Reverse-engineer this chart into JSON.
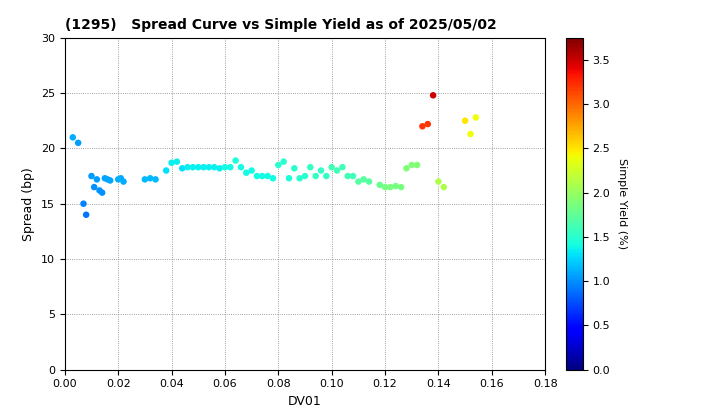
{
  "title": "(1295)   Spread Curve vs Simple Yield as of 2025/05/02",
  "xlabel": "DV01",
  "ylabel": "Spread (bp)",
  "colorbar_label": "Simple Yield (%)",
  "xlim": [
    0.0,
    0.18
  ],
  "ylim": [
    0,
    30
  ],
  "xticks": [
    0.0,
    0.02,
    0.04,
    0.06,
    0.08,
    0.1,
    0.12,
    0.14,
    0.16,
    0.18
  ],
  "yticks": [
    0,
    5,
    10,
    15,
    20,
    25,
    30
  ],
  "colorbar_min": 0.0,
  "colorbar_max": 3.75,
  "colorbar_ticks": [
    0.0,
    0.5,
    1.0,
    1.5,
    2.0,
    2.5,
    3.0,
    3.5
  ],
  "points": [
    [
      0.003,
      21.0,
      1.1
    ],
    [
      0.005,
      20.5,
      1.05
    ],
    [
      0.007,
      15.0,
      0.95
    ],
    [
      0.008,
      14.0,
      0.9
    ],
    [
      0.01,
      17.5,
      1.05
    ],
    [
      0.011,
      16.5,
      1.0
    ],
    [
      0.012,
      17.2,
      1.05
    ],
    [
      0.013,
      16.2,
      1.0
    ],
    [
      0.014,
      16.0,
      1.0
    ],
    [
      0.015,
      17.3,
      1.08
    ],
    [
      0.016,
      17.2,
      1.08
    ],
    [
      0.017,
      17.1,
      1.07
    ],
    [
      0.02,
      17.2,
      1.1
    ],
    [
      0.021,
      17.3,
      1.1
    ],
    [
      0.022,
      17.0,
      1.1
    ],
    [
      0.03,
      17.2,
      1.15
    ],
    [
      0.032,
      17.3,
      1.15
    ],
    [
      0.034,
      17.2,
      1.15
    ],
    [
      0.038,
      18.0,
      1.3
    ],
    [
      0.04,
      18.7,
      1.35
    ],
    [
      0.042,
      18.8,
      1.35
    ],
    [
      0.044,
      18.2,
      1.3
    ],
    [
      0.046,
      18.3,
      1.35
    ],
    [
      0.048,
      18.3,
      1.35
    ],
    [
      0.05,
      18.3,
      1.35
    ],
    [
      0.052,
      18.3,
      1.35
    ],
    [
      0.054,
      18.3,
      1.35
    ],
    [
      0.056,
      18.3,
      1.35
    ],
    [
      0.058,
      18.2,
      1.35
    ],
    [
      0.06,
      18.3,
      1.4
    ],
    [
      0.062,
      18.3,
      1.4
    ],
    [
      0.064,
      18.9,
      1.45
    ],
    [
      0.066,
      18.3,
      1.4
    ],
    [
      0.068,
      17.8,
      1.4
    ],
    [
      0.07,
      18.0,
      1.4
    ],
    [
      0.072,
      17.5,
      1.4
    ],
    [
      0.074,
      17.5,
      1.4
    ],
    [
      0.076,
      17.5,
      1.4
    ],
    [
      0.078,
      17.3,
      1.4
    ],
    [
      0.08,
      18.5,
      1.5
    ],
    [
      0.082,
      18.8,
      1.5
    ],
    [
      0.084,
      17.3,
      1.45
    ],
    [
      0.086,
      18.2,
      1.5
    ],
    [
      0.088,
      17.3,
      1.5
    ],
    [
      0.09,
      17.5,
      1.5
    ],
    [
      0.092,
      18.3,
      1.55
    ],
    [
      0.094,
      17.5,
      1.55
    ],
    [
      0.096,
      18.0,
      1.55
    ],
    [
      0.098,
      17.5,
      1.55
    ],
    [
      0.1,
      18.3,
      1.6
    ],
    [
      0.102,
      18.0,
      1.6
    ],
    [
      0.104,
      18.3,
      1.6
    ],
    [
      0.106,
      17.5,
      1.6
    ],
    [
      0.108,
      17.5,
      1.6
    ],
    [
      0.11,
      17.0,
      1.7
    ],
    [
      0.112,
      17.2,
      1.7
    ],
    [
      0.114,
      17.0,
      1.7
    ],
    [
      0.118,
      16.7,
      1.8
    ],
    [
      0.12,
      16.5,
      1.85
    ],
    [
      0.122,
      16.5,
      1.85
    ],
    [
      0.124,
      16.6,
      1.85
    ],
    [
      0.126,
      16.5,
      1.85
    ],
    [
      0.128,
      18.2,
      1.9
    ],
    [
      0.13,
      18.5,
      1.9
    ],
    [
      0.132,
      18.5,
      1.9
    ],
    [
      0.134,
      22.0,
      3.2
    ],
    [
      0.136,
      22.2,
      3.2
    ],
    [
      0.138,
      24.8,
      3.5
    ],
    [
      0.14,
      17.0,
      2.1
    ],
    [
      0.142,
      16.5,
      2.1
    ],
    [
      0.15,
      22.5,
      2.5
    ],
    [
      0.152,
      21.3,
      2.4
    ],
    [
      0.154,
      22.8,
      2.4
    ]
  ]
}
